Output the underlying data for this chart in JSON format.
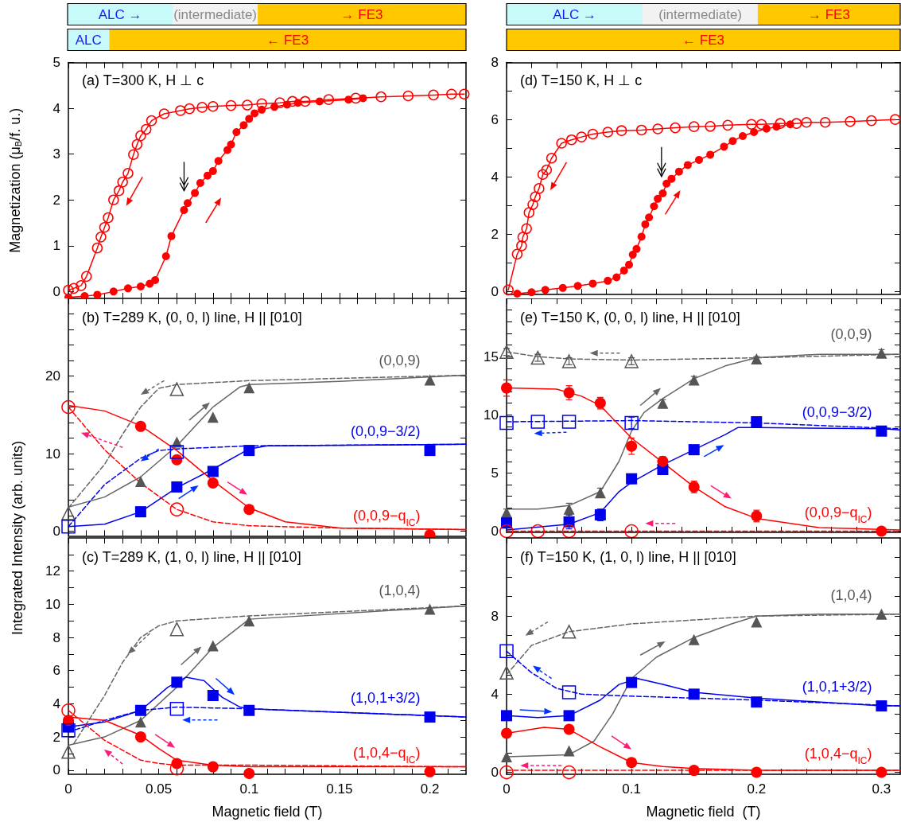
{
  "chart_data": [
    {
      "type": "bar",
      "orientation": "horizontal",
      "stacked": true,
      "categories": [
        null,
        null
      ],
      "xlim": [
        0,
        0.22
      ],
      "tick_labels": false,
      "series": [
        {
          "color": "#c8fafa",
          "values": [
            0.058,
            0.023
          ],
          "value_labels": [
            "ALC →",
            "ALC"
          ]
        },
        {
          "color": "#f2f2f2",
          "values": [
            0.047,
            null
          ],
          "value_labels": [
            "(intermediate)",
            null
          ]
        },
        {
          "color": "#ffc800",
          "values": [
            0.115,
            0.197
          ],
          "value_labels": [
            "→ FE3",
            "← FE3"
          ]
        }
      ]
    },
    {
      "type": "bar",
      "orientation": "horizontal",
      "stacked": true,
      "categories": [
        null,
        null
      ],
      "xlim": [
        0,
        0.315
      ],
      "tick_labels": false,
      "series": [
        {
          "color": "#c8fafa",
          "values": [
            0.109,
            null
          ],
          "value_labels": [
            "ALC →",
            null
          ]
        },
        {
          "color": "#f2f2f2",
          "values": [
            0.092,
            null
          ],
          "value_labels": [
            "(intermediate)",
            null
          ]
        },
        {
          "color": "#ffc800",
          "values": [
            0.114,
            0.315
          ],
          "value_labels": [
            "→ FE3",
            "← FE3"
          ]
        }
      ]
    },
    {
      "type": "line",
      "title": "(a) T=300 K, H ⊥ c",
      "ylabel": "Magnetization (μ$_{B}$/f. u.)",
      "xlim": [
        0,
        0.22
      ],
      "ylim": [
        -0.15,
        5
      ],
      "tick_labels": "y",
      "xticks": [
        0,
        {
          "value": 0.01,
          "label": null
        },
        {
          "value": 0.02,
          "label": null
        },
        {
          "value": 0.03,
          "label": null
        },
        {
          "value": 0.04,
          "label": null
        },
        0.05,
        {
          "value": 0.06,
          "label": null
        },
        {
          "value": 0.07,
          "label": null
        },
        {
          "value": 0.08,
          "label": null
        },
        {
          "value": 0.09,
          "label": null
        },
        0.1,
        {
          "value": 0.11,
          "label": null
        },
        {
          "value": 0.12,
          "label": null
        },
        {
          "value": 0.13,
          "label": null
        },
        {
          "value": 0.14,
          "label": null
        },
        0.15,
        {
          "value": 0.16,
          "label": null
        },
        {
          "value": 0.17,
          "label": null
        },
        {
          "value": 0.18,
          "label": null
        },
        {
          "value": 0.19,
          "label": null
        },
        0.2,
        {
          "value": 0.21,
          "label": null
        }
      ],
      "yticks": [
        0,
        1,
        2,
        3,
        4,
        5
      ],
      "series": [
        {
          "color": "#ff0000",
          "marker": "circle-open",
          "x": [
            0,
            0.003,
            0.007,
            0.01,
            0.016,
            0.018,
            0.02,
            0.022,
            0.025,
            0.028,
            0.03,
            0.033,
            0.036,
            0.038,
            0.04,
            0.043,
            0.046,
            0.053,
            0.062,
            0.067,
            0.074,
            0.08,
            0.09,
            0.099,
            0.107,
            0.117,
            0.124,
            0.131,
            0.144,
            0.159,
            0.173,
            0.188,
            0.202,
            0.212,
            0.219
          ],
          "values": [
            0.03,
            0.07,
            0.13,
            0.33,
            0.95,
            1.19,
            1.4,
            1.61,
            2.0,
            2.2,
            2.39,
            2.58,
            2.99,
            3.21,
            3.4,
            3.54,
            3.73,
            3.88,
            3.95,
            3.99,
            4.02,
            4.04,
            4.06,
            4.07,
            4.1,
            4.12,
            4.15,
            4.15,
            4.19,
            4.22,
            4.25,
            4.27,
            4.29,
            4.31,
            4.31
          ]
        },
        {
          "color": "#ff0000",
          "marker": "circle",
          "x": [
            0,
            0.009,
            0.016,
            0.025,
            0.033,
            0.04,
            0.045,
            0.048,
            0.054,
            0.057,
            0.064,
            0.066,
            0.07,
            0.073,
            0.077,
            0.08,
            0.083,
            0.088,
            0.09,
            0.093,
            0.097,
            0.1,
            0.103,
            0.107,
            0.114,
            0.121,
            0.127,
            0.139,
            0.155,
            0.163
          ],
          "values": [
            -0.13,
            -0.1,
            -0.07,
            0,
            0.07,
            0.11,
            0.17,
            0.25,
            0.77,
            1.21,
            1.78,
            1.93,
            2.15,
            2.37,
            2.53,
            2.63,
            2.85,
            3.09,
            3.21,
            3.48,
            3.63,
            3.77,
            3.89,
            3.97,
            4.03,
            4.08,
            4.12,
            4.15,
            4.19,
            4.22
          ]
        }
      ]
    },
    {
      "type": "line",
      "title": "(d) T=150 K, H ⊥ c",
      "xlim": [
        0,
        0.315
      ],
      "ylim": [
        -0.1,
        8
      ],
      "tick_labels": "y",
      "xticks": [
        0,
        {
          "value": 0.02,
          "label": null
        },
        {
          "value": 0.04,
          "label": null
        },
        {
          "value": 0.06,
          "label": null
        },
        {
          "value": 0.08,
          "label": null
        },
        0.1,
        {
          "value": 0.12,
          "label": null
        },
        {
          "value": 0.14,
          "label": null
        },
        {
          "value": 0.16,
          "label": null
        },
        {
          "value": 0.18,
          "label": null
        },
        0.2,
        {
          "value": 0.22,
          "label": null
        },
        {
          "value": 0.24,
          "label": null
        },
        {
          "value": 0.26,
          "label": null
        },
        {
          "value": 0.28,
          "label": null
        },
        0.3
      ],
      "yticks": [
        0,
        {
          "value": 1,
          "label": null
        },
        2,
        {
          "value": 3,
          "label": null
        },
        4,
        {
          "value": 5,
          "label": null
        },
        6,
        {
          "value": 7,
          "label": null
        },
        8
      ],
      "series": [
        {
          "color": "#ff0000",
          "marker": "circle-open",
          "x": [
            0.0014,
            0.0085,
            0.012,
            0.013,
            0.016,
            0.018,
            0.021,
            0.023,
            0.026,
            0.029,
            0.032,
            0.036,
            0.044,
            0.052,
            0.06,
            0.069,
            0.081,
            0.092,
            0.108,
            0.121,
            0.135,
            0.15,
            0.163,
            0.177,
            0.196,
            0.204,
            0.219,
            0.232,
            0.24,
            0.255,
            0.275,
            0.292,
            0.311
          ],
          "values": [
            0.06,
            1.31,
            1.6,
            1.9,
            2.2,
            2.76,
            3.04,
            3.31,
            3.6,
            4.09,
            4.25,
            4.66,
            5.18,
            5.3,
            5.4,
            5.5,
            5.57,
            5.62,
            5.64,
            5.68,
            5.72,
            5.76,
            5.77,
            5.81,
            5.84,
            5.84,
            5.87,
            5.87,
            5.91,
            5.91,
            5.94,
            5.97,
            6.01
          ]
        },
        {
          "color": "#ff0000",
          "marker": "circle",
          "x": [
            0.0085,
            0.02,
            0.031,
            0.045,
            0.057,
            0.069,
            0.081,
            0.088,
            0.094,
            0.098,
            0.101,
            0.104,
            0.108,
            0.111,
            0.114,
            0.118,
            0.121,
            0.125,
            0.128,
            0.132,
            0.138,
            0.145,
            0.154,
            0.163,
            0.174,
            0.181,
            0.189,
            0.198,
            0.208,
            0.216,
            0.227
          ],
          "values": [
            -0.07,
            -0.02,
            0.06,
            0.13,
            0.2,
            0.28,
            0.38,
            0.5,
            0.74,
            0.94,
            1.29,
            1.49,
            1.92,
            2.35,
            2.59,
            2.98,
            3.24,
            3.43,
            3.77,
            3.94,
            4.19,
            4.42,
            4.6,
            4.78,
            5.06,
            5.26,
            5.43,
            5.57,
            5.69,
            5.76,
            5.84
          ]
        }
      ]
    },
    {
      "type": "scatter",
      "title": "(b) T=289 K, (0, 0, l) line, H || [010]",
      "xlim": [
        0,
        0.22
      ],
      "ylim": [
        -0.6,
        30
      ],
      "tick_labels": "y",
      "xticks": [
        0,
        {
          "value": 0.01,
          "label": null
        },
        {
          "value": 0.02,
          "label": null
        },
        {
          "value": 0.03,
          "label": null
        },
        {
          "value": 0.04,
          "label": null
        },
        0.05,
        {
          "value": 0.06,
          "label": null
        },
        {
          "value": 0.07,
          "label": null
        },
        {
          "value": 0.08,
          "label": null
        },
        {
          "value": 0.09,
          "label": null
        },
        0.1,
        {
          "value": 0.11,
          "label": null
        },
        {
          "value": 0.12,
          "label": null
        },
        {
          "value": 0.13,
          "label": null
        },
        {
          "value": 0.14,
          "label": null
        },
        0.15,
        {
          "value": 0.16,
          "label": null
        },
        {
          "value": 0.17,
          "label": null
        },
        {
          "value": 0.18,
          "label": null
        },
        {
          "value": 0.19,
          "label": null
        },
        0.2,
        {
          "value": 0.21,
          "label": null
        }
      ],
      "yticks": [
        0,
        {
          "value": 2,
          "label": null
        },
        {
          "value": 4,
          "label": null
        },
        {
          "value": 6,
          "label": null
        },
        {
          "value": 8,
          "label": null
        },
        10,
        {
          "value": 12,
          "label": null
        },
        {
          "value": 14,
          "label": null
        },
        {
          "value": 16,
          "label": null
        },
        {
          "value": 18,
          "label": null
        },
        20,
        {
          "value": 22,
          "label": null
        },
        {
          "value": 24,
          "label": null
        },
        {
          "value": 26,
          "label": null
        },
        {
          "value": 28,
          "label": null
        }
      ],
      "series": [
        {
          "type": "line",
          "color": "#666666",
          "marker": "none",
          "line_style": "dashed",
          "x": [
            0,
            0.01,
            0.02,
            0.03,
            0.04,
            0.05,
            0.06,
            0.1,
            0.15,
            0.22
          ],
          "values": [
            3.0,
            5.8,
            8.6,
            12.5,
            16.0,
            18.4,
            18.9,
            19.4,
            19.7,
            20.1
          ]
        },
        {
          "type": "line",
          "color": "#666666",
          "marker": "none",
          "line_style": "solid",
          "x": [
            0,
            0.02,
            0.04,
            0.06,
            0.08,
            0.095,
            0.1,
            0.15,
            0.22
          ],
          "values": [
            3.1,
            4.4,
            7.0,
            11.0,
            16.0,
            18.6,
            18.9,
            19.3,
            20.1
          ]
        },
        {
          "type": "line",
          "color": "#0000ee",
          "marker": "none",
          "line_style": "dashed",
          "x": [
            0,
            0.02,
            0.04,
            0.05,
            0.06,
            0.1,
            0.22
          ],
          "values": [
            0.6,
            6.0,
            9.4,
            10.4,
            10.6,
            11.0,
            11.2
          ]
        },
        {
          "type": "line",
          "color": "#0000ee",
          "marker": "none",
          "line_style": "solid",
          "x": [
            0,
            0.02,
            0.04,
            0.06,
            0.08,
            0.1,
            0.11,
            0.22
          ],
          "values": [
            0.6,
            0.9,
            2.5,
            5.6,
            8.0,
            10.6,
            11.0,
            11.2
          ]
        },
        {
          "type": "line",
          "color": "#ff0000",
          "marker": "none",
          "line_style": "dashed",
          "x": [
            0,
            0.02,
            0.04,
            0.06,
            0.08,
            0.1,
            0.15,
            0.22
          ],
          "values": [
            16.0,
            10.5,
            6.2,
            2.8,
            1.2,
            0.7,
            0.4,
            0.2
          ]
        },
        {
          "type": "line",
          "color": "#ff0000",
          "marker": "none",
          "line_style": "solid",
          "x": [
            0,
            0.02,
            0.04,
            0.06,
            0.08,
            0.1,
            0.12,
            0.15,
            0.22
          ],
          "values": [
            16.2,
            15.5,
            13.6,
            10.4,
            6.5,
            3.0,
            1.2,
            0.4,
            0.2
          ]
        },
        {
          "color": "#555555",
          "marker": "triangle-open",
          "x": [
            0,
            0.06
          ],
          "values": [
            2.3,
            18.3
          ]
        },
        {
          "name": "(0,0,9)",
          "color": "#555555",
          "marker": "triangle",
          "x": [
            0.04,
            0.06,
            0.08,
            0.1,
            0.2
          ],
          "values": [
            6.4,
            11.5,
            14.7,
            18.5,
            19.5
          ]
        },
        {
          "color": "#0000ee",
          "marker": "square-open",
          "x": [
            0,
            0.06
          ],
          "values": [
            0.6,
            10.2
          ]
        },
        {
          "name": "(0,0,9−3/2)",
          "color": "#0000ee",
          "marker": "square",
          "x": [
            0.04,
            0.06,
            0.08,
            0.1,
            0.2
          ],
          "values": [
            2.5,
            5.7,
            7.7,
            10.4,
            10.4
          ]
        },
        {
          "color": "#ff0000",
          "marker": "circle-open",
          "x": [
            0,
            0.06
          ],
          "values": [
            16.0,
            2.8
          ]
        },
        {
          "name": "(0,0,9−q$_{IC}$)",
          "color": "#ff0000",
          "marker": "circle",
          "x": [
            0.04,
            0.06,
            0.08,
            0.1,
            0.2
          ],
          "values": [
            13.5,
            9.2,
            6.2,
            2.8,
            -0.5
          ]
        }
      ]
    },
    {
      "type": "scatter",
      "title": "(e) T=150 K, (0, 0, l) line, H || [010]",
      "xlim": [
        0,
        0.315
      ],
      "ylim": [
        -0.1,
        20
      ],
      "tick_labels": "y",
      "xticks": [
        0,
        {
          "value": 0.02,
          "label": null
        },
        {
          "value": 0.04,
          "label": null
        },
        {
          "value": 0.06,
          "label": null
        },
        {
          "value": 0.08,
          "label": null
        },
        0.1,
        {
          "value": 0.12,
          "label": null
        },
        {
          "value": 0.14,
          "label": null
        },
        {
          "value": 0.16,
          "label": null
        },
        {
          "value": 0.18,
          "label": null
        },
        0.2,
        {
          "value": 0.22,
          "label": null
        },
        {
          "value": 0.24,
          "label": null
        },
        {
          "value": 0.26,
          "label": null
        },
        {
          "value": 0.28,
          "label": null
        },
        0.3
      ],
      "yticks": [
        0,
        {
          "value": 1,
          "label": null
        },
        {
          "value": 2,
          "label": null
        },
        {
          "value": 3,
          "label": null
        },
        {
          "value": 4,
          "label": null
        },
        5,
        {
          "value": 6,
          "label": null
        },
        {
          "value": 7,
          "label": null
        },
        {
          "value": 8,
          "label": null
        },
        {
          "value": 9,
          "label": null
        },
        10,
        {
          "value": 11,
          "label": null
        },
        {
          "value": 12,
          "label": null
        },
        {
          "value": 13,
          "label": null
        },
        {
          "value": 14,
          "label": null
        },
        15,
        {
          "value": 16,
          "label": null
        },
        {
          "value": 17,
          "label": null
        },
        {
          "value": 18,
          "label": null
        },
        {
          "value": 19,
          "label": null
        }
      ],
      "series": [
        {
          "type": "line",
          "color": "#666666",
          "marker": "none",
          "line_style": "dashed",
          "x": [
            0,
            0.025,
            0.05,
            0.1,
            0.2,
            0.315
          ],
          "values": [
            15.4,
            15.0,
            14.8,
            14.7,
            14.9,
            15.2
          ]
        },
        {
          "type": "line",
          "color": "#666666",
          "marker": "none",
          "line_style": "solid",
          "x": [
            0,
            0.025,
            0.05,
            0.075,
            0.09,
            0.1,
            0.11,
            0.125,
            0.15,
            0.175,
            0.2,
            0.25,
            0.315
          ],
          "values": [
            1.9,
            1.9,
            2.2,
            3.4,
            6.0,
            8.6,
            10.2,
            11.4,
            13.1,
            14.2,
            14.9,
            15.2,
            15.2
          ]
        },
        {
          "type": "line",
          "color": "#0000ee",
          "marker": "none",
          "line_style": "dashed",
          "x": [
            0,
            0.1,
            0.2,
            0.315
          ],
          "values": [
            9.4,
            9.5,
            9.3,
            8.8
          ]
        },
        {
          "type": "line",
          "color": "#0000ee",
          "marker": "none",
          "line_style": "solid",
          "x": [
            0,
            0.05,
            0.075,
            0.09,
            0.1,
            0.125,
            0.15,
            0.175,
            0.185,
            0.2,
            0.3,
            0.315
          ],
          "values": [
            0.1,
            0.6,
            1.6,
            3.4,
            4.2,
            5.7,
            7.0,
            8.3,
            8.9,
            8.9,
            8.8,
            8.7
          ]
        },
        {
          "type": "line",
          "color": "#ff0000",
          "marker": "none",
          "line_style": "dashed",
          "x": [
            0,
            0.315
          ],
          "values": [
            0,
            0
          ]
        },
        {
          "type": "line",
          "color": "#ff0000",
          "marker": "none",
          "line_style": "solid",
          "x": [
            0,
            0.04,
            0.06,
            0.075,
            0.1,
            0.125,
            0.15,
            0.175,
            0.2,
            0.25,
            0.315
          ],
          "values": [
            12.3,
            12.2,
            11.6,
            10.8,
            8.0,
            5.9,
            3.8,
            2.1,
            1.1,
            0.3,
            0.1
          ]
        },
        {
          "color": "#555555",
          "marker": "triangle-open",
          "x": [
            0,
            0.025,
            0.05,
            0.1
          ],
          "values": [
            15.4,
            14.9,
            14.6,
            14.6
          ],
          "errors": [
            0.3,
            0.3,
            0.3,
            0.3
          ]
        },
        {
          "name": "(0,0,9)",
          "color": "#555555",
          "marker": "triangle",
          "x": [
            0,
            0.05,
            0.075,
            0.125,
            0.15,
            0.2,
            0.3
          ],
          "values": [
            1.6,
            1.9,
            3.3,
            11.0,
            13.0,
            14.8,
            15.3
          ],
          "errors": [
            0.3,
            0.5,
            0.4,
            0.3,
            0.3,
            0.2,
            0.3
          ]
        },
        {
          "color": "#0000ee",
          "marker": "square-open",
          "x": [
            0,
            0.025,
            0.05,
            0.1
          ],
          "values": [
            9.3,
            9.4,
            9.4,
            9.3
          ],
          "errors": [
            null,
            null,
            null,
            0.5
          ]
        },
        {
          "name": "(0,0,9−3/2)",
          "color": "#0000ee",
          "marker": "square",
          "x": [
            0,
            0.05,
            0.075,
            0.1,
            0.125,
            0.15,
            0.2,
            0.3
          ],
          "values": [
            0.7,
            0.8,
            1.4,
            4.5,
            5.3,
            7.0,
            9.4,
            8.6
          ],
          "errors": [
            0.4,
            0.6,
            0.5,
            0.4,
            0.3,
            0.3,
            0.4,
            0.3
          ]
        },
        {
          "color": "#ff0000",
          "marker": "circle-open",
          "x": [
            0,
            0.025,
            0.05,
            0.1
          ],
          "values": [
            0,
            0,
            0,
            0
          ]
        },
        {
          "name": "(0,0,9−q$_{IC}$)",
          "color": "#ff0000",
          "marker": "circle",
          "x": [
            0,
            0.05,
            0.075,
            0.1,
            0.125,
            0.15,
            0.2,
            0.3
          ],
          "values": [
            12.3,
            11.9,
            11.0,
            7.3,
            6.0,
            3.8,
            1.3,
            0
          ],
          "errors": [
            0.7,
            0.6,
            0.5,
            0.7,
            0.4,
            0.5,
            0.5,
            null
          ]
        }
      ]
    },
    {
      "type": "scatter",
      "title": "(c) T=289 K, (1, 0, l) line, H || [010]",
      "xlabel": "Magnetic field (T)",
      "ylabel": "Integrated Intensity (arb. units)",
      "xlim": [
        0,
        0.22
      ],
      "ylim": [
        -0.25,
        14
      ],
      "xticks": [
        0,
        {
          "value": 0.01,
          "label": null
        },
        {
          "value": 0.02,
          "label": null
        },
        {
          "value": 0.03,
          "label": null
        },
        {
          "value": 0.04,
          "label": null
        },
        0.05,
        {
          "value": 0.06,
          "label": null
        },
        {
          "value": 0.07,
          "label": null
        },
        {
          "value": 0.08,
          "label": null
        },
        {
          "value": 0.09,
          "label": null
        },
        0.1,
        {
          "value": 0.11,
          "label": null
        },
        {
          "value": 0.12,
          "label": null
        },
        {
          "value": 0.13,
          "label": null
        },
        {
          "value": 0.14,
          "label": null
        },
        0.15,
        {
          "value": 0.16,
          "label": null
        },
        {
          "value": 0.17,
          "label": null
        },
        {
          "value": 0.18,
          "label": null
        },
        {
          "value": 0.19,
          "label": null
        },
        0.2,
        {
          "value": 0.21,
          "label": null
        }
      ],
      "yticks": [
        0,
        {
          "value": 1,
          "label": null
        },
        2,
        {
          "value": 3,
          "label": null
        },
        4,
        {
          "value": 5,
          "label": null
        },
        6,
        {
          "value": 7,
          "label": null
        },
        8,
        {
          "value": 9,
          "label": null
        },
        10,
        {
          "value": 11,
          "label": null
        },
        12,
        {
          "value": 13,
          "label": null
        }
      ],
      "series": [
        {
          "type": "line",
          "color": "#666666",
          "marker": "none",
          "line_style": "dashed",
          "x": [
            0.003,
            0.02,
            0.03,
            0.04,
            0.05,
            0.06,
            0.1,
            0.22
          ],
          "values": [
            1.6,
            4.5,
            6.5,
            8.0,
            8.7,
            9.0,
            9.3,
            9.9
          ]
        },
        {
          "type": "line",
          "color": "#666666",
          "marker": "none",
          "line_style": "solid",
          "x": [
            0,
            0.02,
            0.04,
            0.06,
            0.08,
            0.1,
            0.22
          ],
          "values": [
            1.5,
            2.0,
            3.0,
            5.0,
            7.4,
            9.1,
            9.9
          ]
        },
        {
          "type": "line",
          "color": "#0000ee",
          "marker": "none",
          "line_style": "dashed",
          "x": [
            0,
            0.02,
            0.04,
            0.06,
            0.1,
            0.22
          ],
          "values": [
            2.3,
            3.0,
            3.6,
            3.8,
            3.7,
            3.2
          ]
        },
        {
          "type": "line",
          "color": "#0000ee",
          "marker": "none",
          "line_style": "solid",
          "x": [
            0,
            0.02,
            0.04,
            0.055,
            0.065,
            0.075,
            0.085,
            0.095,
            0.1,
            0.22
          ],
          "values": [
            2.6,
            2.9,
            3.6,
            5.0,
            5.6,
            5.4,
            4.4,
            3.8,
            3.7,
            3.2
          ]
        },
        {
          "type": "line",
          "color": "#ff0000",
          "marker": "none",
          "line_style": "dashed",
          "x": [
            0,
            0.02,
            0.04,
            0.05,
            0.06,
            0.1,
            0.22
          ],
          "values": [
            3.6,
            1.8,
            0.6,
            0.4,
            0.3,
            0.3,
            0.2
          ]
        },
        {
          "type": "line",
          "color": "#ff0000",
          "marker": "none",
          "line_style": "solid",
          "x": [
            0,
            0.02,
            0.04,
            0.05,
            0.06,
            0.08,
            0.1,
            0.22
          ],
          "values": [
            3.2,
            3.0,
            2.1,
            1.3,
            0.6,
            0.3,
            0.2,
            0.2
          ]
        },
        {
          "color": "#555555",
          "marker": "triangle-open",
          "x": [
            0,
            0.06
          ],
          "values": [
            1.1,
            8.5
          ]
        },
        {
          "name": "(1,0,4)",
          "color": "#555555",
          "marker": "triangle",
          "x": [
            0.04,
            0.08,
            0.1,
            0.2
          ],
          "values": [
            2.9,
            7.5,
            9.0,
            9.7
          ]
        },
        {
          "color": "#0000ee",
          "marker": "square-open",
          "x": [
            0,
            0.06
          ],
          "values": [
            2.4,
            3.7
          ]
        },
        {
          "name": "(1,0,1+3/2)",
          "color": "#0000ee",
          "marker": "square",
          "x": [
            0,
            0.04,
            0.06,
            0.08,
            0.1,
            0.2
          ],
          "values": [
            2.6,
            3.6,
            5.3,
            4.5,
            3.6,
            3.2
          ]
        },
        {
          "color": "#ff0000",
          "marker": "circle-open",
          "x": [
            0,
            0.06
          ],
          "values": [
            3.6,
            0.1
          ]
        },
        {
          "name": "(1,0,4−q$_{IC}$)",
          "color": "#ff0000",
          "marker": "circle",
          "x": [
            0,
            0.04,
            0.06,
            0.08,
            0.1,
            0.2
          ],
          "values": [
            3.0,
            2.0,
            0.4,
            0.2,
            -0.2,
            -0.1
          ]
        }
      ]
    },
    {
      "type": "scatter",
      "title": "(f) T=150 K, (1, 0, l) line, H || [010]",
      "xlabel": "Magnetic field  (T)",
      "xlim": [
        0,
        0.315
      ],
      "ylim": [
        -0.1,
        12
      ],
      "xticks": [
        0,
        {
          "value": 0.02,
          "label": null
        },
        {
          "value": 0.04,
          "label": null
        },
        {
          "value": 0.06,
          "label": null
        },
        {
          "value": 0.08,
          "label": null
        },
        0.1,
        {
          "value": 0.12,
          "label": null
        },
        {
          "value": 0.14,
          "label": null
        },
        {
          "value": 0.16,
          "label": null
        },
        {
          "value": 0.18,
          "label": null
        },
        0.2,
        {
          "value": 0.22,
          "label": null
        },
        {
          "value": 0.24,
          "label": null
        },
        {
          "value": 0.26,
          "label": null
        },
        {
          "value": 0.28,
          "label": null
        },
        0.3
      ],
      "yticks": [
        0,
        {
          "value": 1,
          "label": null
        },
        {
          "value": 2,
          "label": null
        },
        {
          "value": 3,
          "label": null
        },
        4,
        {
          "value": 5,
          "label": null
        },
        {
          "value": 6,
          "label": null
        },
        {
          "value": 7,
          "label": null
        },
        8,
        {
          "value": 9,
          "label": null
        },
        {
          "value": 10,
          "label": null
        },
        {
          "value": 11,
          "label": null
        }
      ],
      "series": [
        {
          "type": "line",
          "color": "#666666",
          "marker": "none",
          "line_style": "dashed",
          "x": [
            0,
            0.02,
            0.05,
            0.1,
            0.2,
            0.315
          ],
          "values": [
            5.0,
            6.5,
            7.2,
            7.6,
            8.0,
            8.1
          ]
        },
        {
          "type": "line",
          "color": "#666666",
          "marker": "none",
          "line_style": "solid",
          "x": [
            0,
            0.05,
            0.07,
            0.085,
            0.1,
            0.12,
            0.15,
            0.18,
            0.2,
            0.25,
            0.315
          ],
          "values": [
            0.8,
            0.9,
            1.6,
            3.0,
            4.8,
            5.9,
            6.9,
            7.6,
            8.0,
            8.1,
            8.1
          ]
        },
        {
          "type": "line",
          "color": "#0000ee",
          "marker": "none",
          "line_style": "dashed",
          "x": [
            0,
            0.02,
            0.04,
            0.06,
            0.1,
            0.2,
            0.315
          ],
          "values": [
            6.2,
            5.1,
            4.3,
            4.0,
            3.9,
            3.7,
            3.4
          ]
        },
        {
          "type": "line",
          "color": "#0000ee",
          "marker": "none",
          "line_style": "solid",
          "x": [
            0,
            0.025,
            0.05,
            0.075,
            0.09,
            0.105,
            0.125,
            0.15,
            0.2,
            0.3,
            0.315
          ],
          "values": [
            2.9,
            2.8,
            2.9,
            3.7,
            4.5,
            4.8,
            4.5,
            4.1,
            3.8,
            3.4,
            3.4
          ]
        },
        {
          "type": "line",
          "color": "#ff0000",
          "marker": "none",
          "line_style": "dashed",
          "x": [
            0,
            0.315
          ],
          "values": [
            0.1,
            0.1
          ]
        },
        {
          "type": "line",
          "color": "#ff0000",
          "marker": "none",
          "line_style": "solid",
          "x": [
            0,
            0.03,
            0.05,
            0.075,
            0.1,
            0.125,
            0.15,
            0.2,
            0.315
          ],
          "values": [
            2.0,
            2.3,
            2.2,
            1.3,
            0.5,
            0.3,
            0.2,
            0.1,
            0.1
          ]
        },
        {
          "color": "#555555",
          "marker": "triangle-open",
          "x": [
            0,
            0.05
          ],
          "values": [
            5.1,
            7.2
          ]
        },
        {
          "name": "(1,0,4)",
          "color": "#555555",
          "marker": "triangle",
          "x": [
            0,
            0.05,
            0.15,
            0.2,
            0.3
          ],
          "values": [
            0.8,
            1.1,
            6.8,
            7.7,
            8.1
          ]
        },
        {
          "color": "#0000ee",
          "marker": "square-open",
          "x": [
            0,
            0.05
          ],
          "values": [
            6.2,
            4.1
          ]
        },
        {
          "name": "(1,0,1+3/2)",
          "color": "#0000ee",
          "marker": "square",
          "x": [
            0,
            0.05,
            0.1,
            0.15,
            0.2,
            0.3
          ],
          "values": [
            2.9,
            2.9,
            4.6,
            4.0,
            3.6,
            3.4
          ]
        },
        {
          "color": "#ff0000",
          "marker": "circle-open",
          "x": [
            0,
            0.05
          ],
          "values": [
            0,
            0
          ]
        },
        {
          "name": "(1,0,4−q$_{IC}$)",
          "color": "#ff0000",
          "marker": "circle",
          "x": [
            0,
            0.05,
            0.1,
            0.15,
            0.2,
            0.3
          ],
          "values": [
            2.0,
            2.2,
            0.5,
            0.1,
            0,
            0
          ]
        }
      ]
    }
  ]
}
